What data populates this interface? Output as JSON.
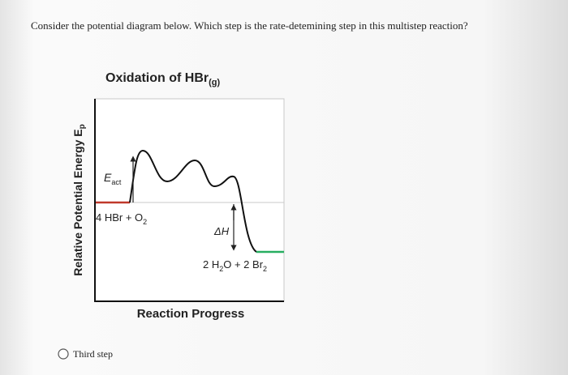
{
  "question": "Consider the potential diagram below. Which step is the rate-detemining step in this multistep reaction?",
  "diagram": {
    "title": {
      "main": "Oxidation of HBr",
      "sub": "(g)"
    },
    "y_axis_label": {
      "main": "Relative Potential Energy E",
      "sub": "p"
    },
    "x_axis_label": "Reaction Progress",
    "activation_label": {
      "main": "E",
      "sub": "act"
    },
    "reactants": {
      "main": "4 HBr + O",
      "sub": "2"
    },
    "enthalpy_label": "ΔH",
    "products": {
      "part1": "2 H",
      "sub1": "2",
      "part2": "O + 2 Br",
      "sub2": "2"
    }
  },
  "options": [
    "Third step"
  ]
}
